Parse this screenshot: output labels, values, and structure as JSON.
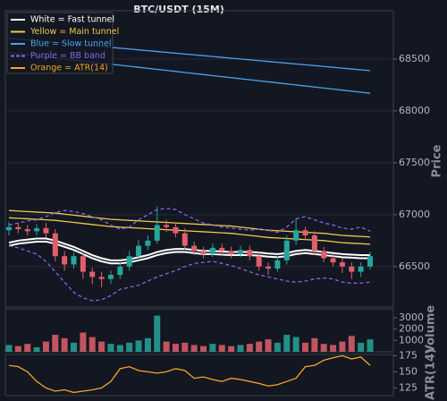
{
  "chart_data": [
    {
      "type": "candlestick",
      "title": "BTC/USDT (15M)",
      "ylabel": "Price",
      "up_color": "#26a69a",
      "down_color": "#e0606a",
      "ylim": [
        66110,
        68965
      ],
      "yticks": [
        66500,
        67000,
        67500,
        68000,
        68500
      ],
      "grid": true,
      "legend": "upper left",
      "open": [
        66850,
        66880,
        66860,
        66840,
        66870,
        66820,
        66600,
        66520,
        66600,
        66450,
        66400,
        66380,
        66420,
        66500,
        66600,
        66700,
        66750,
        66900,
        66880,
        66820,
        66700,
        66650,
        66620,
        66680,
        66650,
        66620,
        66660,
        66600,
        66500,
        66480,
        66560,
        66750,
        66850,
        66800,
        66650,
        66580,
        66540,
        66500,
        66450,
        66500
      ],
      "high": [
        66930,
        66920,
        66900,
        66910,
        66920,
        66860,
        66650,
        66640,
        66630,
        66490,
        66450,
        66460,
        66540,
        66650,
        66760,
        66800,
        67080,
        66950,
        66920,
        66870,
        66740,
        66690,
        66720,
        66720,
        66690,
        66700,
        66700,
        66640,
        66540,
        66600,
        66800,
        66960,
        66880,
        66840,
        66690,
        66620,
        66580,
        66540,
        66540,
        66640
      ],
      "low": [
        66800,
        66820,
        66800,
        66800,
        66780,
        66550,
        66460,
        66480,
        66380,
        66330,
        66300,
        66330,
        66380,
        66460,
        66560,
        66660,
        66720,
        66830,
        66780,
        66660,
        66610,
        66580,
        66590,
        66610,
        66580,
        66590,
        66560,
        66460,
        66420,
        66450,
        66520,
        66710,
        66760,
        66610,
        66540,
        66500,
        66440,
        66380,
        66400,
        66470
      ],
      "close": [
        66880,
        66860,
        66840,
        66870,
        66820,
        66600,
        66520,
        66600,
        66450,
        66400,
        66380,
        66420,
        66500,
        66600,
        66700,
        66750,
        66900,
        66880,
        66820,
        66700,
        66650,
        66620,
        66680,
        66650,
        66620,
        66660,
        66600,
        66500,
        66480,
        66560,
        66750,
        66850,
        66800,
        66650,
        66580,
        66540,
        66500,
        66450,
        66500,
        66600
      ],
      "series": [
        {
          "name": "White = Fast tunnel",
          "color": "#ffffff",
          "style": "solid",
          "upper": [
            66730,
            66750,
            66760,
            66770,
            66770,
            66750,
            66720,
            66690,
            66650,
            66610,
            66580,
            66560,
            66560,
            66570,
            66590,
            66610,
            66640,
            66660,
            66670,
            66670,
            66660,
            66650,
            66650,
            66645,
            66640,
            66640,
            66640,
            66635,
            66625,
            66620,
            66630,
            66650,
            66660,
            66650,
            66640,
            66630,
            66620,
            66615,
            66610,
            66610
          ],
          "lower": [
            66700,
            66720,
            66730,
            66740,
            66740,
            66720,
            66690,
            66660,
            66620,
            66580,
            66550,
            66530,
            66530,
            66540,
            66560,
            66580,
            66610,
            66630,
            66640,
            66640,
            66630,
            66620,
            66620,
            66615,
            66610,
            66610,
            66610,
            66605,
            66595,
            66590,
            66600,
            66620,
            66630,
            66620,
            66610,
            66600,
            66590,
            66585,
            66580,
            66580
          ]
        },
        {
          "name": "Yellow = Main tunnel",
          "color": "#f2c94c",
          "style": "solid",
          "upper": [
            67040,
            67035,
            67030,
            67025,
            67020,
            67015,
            67005,
            66995,
            66985,
            66975,
            66965,
            66955,
            66950,
            66945,
            66940,
            66935,
            66930,
            66925,
            66920,
            66915,
            66910,
            66905,
            66900,
            66895,
            66890,
            66880,
            66870,
            66860,
            66850,
            66845,
            66840,
            66835,
            66830,
            66825,
            66820,
            66810,
            66800,
            66795,
            66790,
            66785
          ],
          "lower": [
            66970,
            66965,
            66960,
            66955,
            66950,
            66945,
            66935,
            66925,
            66915,
            66905,
            66895,
            66885,
            66880,
            66875,
            66870,
            66865,
            66860,
            66855,
            66850,
            66845,
            66840,
            66835,
            66830,
            66825,
            66820,
            66810,
            66800,
            66790,
            66780,
            66775,
            66770,
            66765,
            66760,
            66755,
            66750,
            66740,
            66730,
            66725,
            66720,
            66715
          ]
        },
        {
          "name": "Blue = Slow tunnel",
          "color": "#4aa3f0",
          "style": "solid",
          "upper": [
            68700,
            68692,
            68684,
            68676,
            68668,
            68660,
            68652,
            68644,
            68636,
            68628,
            68620,
            68612,
            68604,
            68596,
            68588,
            68580,
            68572,
            68564,
            68556,
            68548,
            68540,
            68532,
            68524,
            68516,
            68508,
            68500,
            68492,
            68484,
            68476,
            68468,
            68460,
            68452,
            68444,
            68436,
            68428,
            68420,
            68412,
            68404,
            68396,
            68388
          ],
          "lower": [
            68560,
            68550,
            68540,
            68530,
            68520,
            68510,
            68500,
            68490,
            68480,
            68470,
            68460,
            68450,
            68440,
            68430,
            68420,
            68410,
            68400,
            68390,
            68380,
            68370,
            68360,
            68350,
            68340,
            68330,
            68320,
            68310,
            68300,
            68290,
            68280,
            68270,
            68260,
            68250,
            68240,
            68230,
            68220,
            68210,
            68200,
            68190,
            68180,
            68170
          ]
        },
        {
          "name": "Purple = BB band",
          "color": "#8a63e8",
          "style": "dashed",
          "upper": [
            66900,
            66920,
            66940,
            66950,
            66980,
            67020,
            67040,
            67030,
            67010,
            66980,
            66950,
            66900,
            66860,
            66880,
            66950,
            67000,
            67050,
            67060,
            67050,
            67000,
            66960,
            66920,
            66900,
            66880,
            66870,
            66860,
            66850,
            66860,
            66850,
            66830,
            66880,
            66960,
            66980,
            66950,
            66920,
            66900,
            66870,
            66860,
            66880,
            66840
          ],
          "lower": [
            66700,
            66680,
            66650,
            66620,
            66550,
            66450,
            66350,
            66250,
            66200,
            66170,
            66180,
            66220,
            66280,
            66300,
            66320,
            66360,
            66400,
            66430,
            66460,
            66500,
            66530,
            66540,
            66550,
            66530,
            66510,
            66480,
            66450,
            66420,
            66400,
            66380,
            66360,
            66350,
            66360,
            66380,
            66390,
            66380,
            66350,
            66340,
            66340,
            66350
          ]
        }
      ]
    },
    {
      "type": "bar",
      "ylabel": "Volume",
      "ylim": [
        0,
        3800
      ],
      "yticks": [
        1000,
        2000,
        3000
      ],
      "values": [
        600,
        500,
        700,
        400,
        900,
        1500,
        1200,
        800,
        1700,
        1300,
        900,
        700,
        600,
        800,
        1000,
        1200,
        3200,
        900,
        700,
        800,
        600,
        500,
        700,
        600,
        500,
        600,
        700,
        900,
        1100,
        800,
        1500,
        1300,
        800,
        1200,
        700,
        600,
        900,
        1400,
        800,
        1100
      ]
    },
    {
      "type": "line",
      "ylabel": "ATR(14)",
      "ylim": [
        113,
        177
      ],
      "yticks": [
        125,
        150,
        175
      ],
      "series": [
        {
          "name": "Orange = ATR(14)",
          "color": "#f5a623",
          "values": [
            160,
            158,
            150,
            135,
            125,
            120,
            122,
            118,
            120,
            122,
            125,
            135,
            155,
            158,
            152,
            150,
            148,
            150,
            155,
            152,
            140,
            142,
            138,
            135,
            140,
            138,
            135,
            132,
            128,
            130,
            135,
            140,
            158,
            160,
            168,
            172,
            175,
            170,
            173,
            160
          ]
        }
      ]
    }
  ]
}
